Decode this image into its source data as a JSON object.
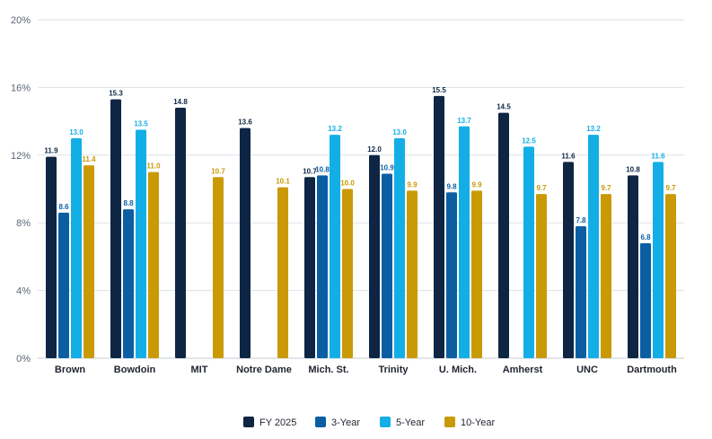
{
  "chart_data": {
    "type": "bar",
    "title": "",
    "xlabel": "",
    "ylabel": "",
    "ylim": [
      0,
      20
    ],
    "yticks": [
      0,
      4,
      8,
      12,
      16,
      20
    ],
    "ytick_labels": [
      "0%",
      "4%",
      "8%",
      "12%",
      "16%",
      "20%"
    ],
    "grid": true,
    "legend_position": "bottom",
    "categories": [
      "Brown",
      "Bowdoin",
      "MIT",
      "Notre Dame",
      "Mich. St.",
      "Trinity",
      "U. Mich.",
      "Amherst",
      "UNC",
      "Dartmouth"
    ],
    "series": [
      {
        "name": "FY 2025",
        "color": "#0e2544",
        "label_color": "#0e2544",
        "values": [
          11.9,
          15.3,
          14.8,
          13.6,
          10.7,
          12.0,
          15.5,
          14.5,
          11.6,
          10.8
        ],
        "labels": [
          "11.9",
          "15.3",
          "14.8",
          "13.6",
          "10.7",
          "12.0",
          "15.5",
          "14.5",
          "11.6",
          "10.8"
        ]
      },
      {
        "name": "3-Year",
        "color": "#0c5ea3",
        "label_color": "#0c5ea3",
        "values": [
          8.6,
          8.8,
          null,
          null,
          10.8,
          10.9,
          9.8,
          null,
          7.8,
          6.8
        ],
        "labels": [
          "8.6",
          "8.8",
          null,
          null,
          "10.8",
          "10.9",
          "9.8",
          null,
          "7.8",
          "6.8"
        ]
      },
      {
        "name": "5-Year",
        "color": "#14aee6",
        "label_color": "#14aee6",
        "values": [
          13.0,
          13.5,
          null,
          null,
          13.2,
          13.0,
          13.7,
          12.5,
          13.2,
          11.6
        ],
        "labels": [
          "13.0",
          "13.5",
          null,
          null,
          "13.2",
          "13.0",
          "13.7",
          "12.5",
          "13.2",
          "11.6"
        ]
      },
      {
        "name": "10-Year",
        "color": "#c99a06",
        "label_color": "#c99a06",
        "values": [
          11.4,
          11.0,
          10.7,
          10.1,
          10.0,
          9.9,
          9.9,
          9.7,
          9.7,
          9.7
        ],
        "labels": [
          "11.4",
          "11.0",
          "10.7",
          "10.1",
          "10.0",
          "9.9",
          "9.9",
          "9.7",
          "9.7",
          "9.7"
        ]
      }
    ]
  }
}
